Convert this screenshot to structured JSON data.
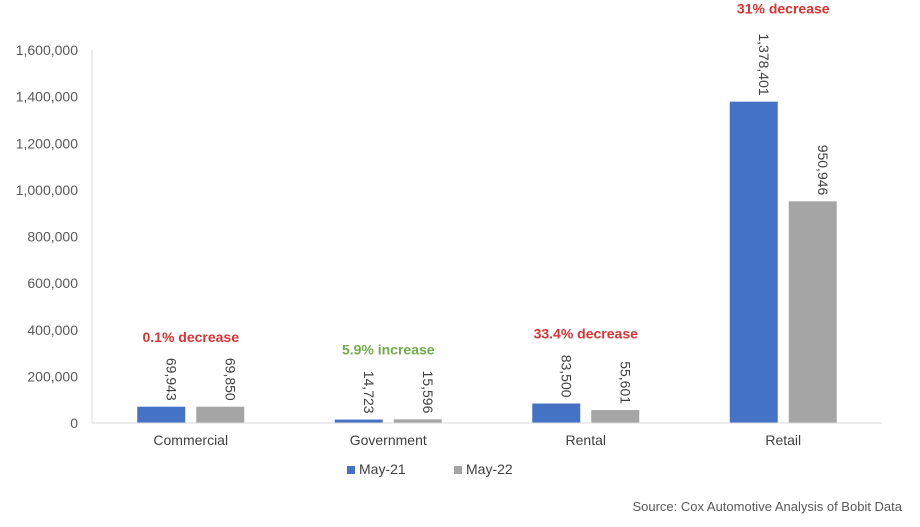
{
  "chart_data": {
    "type": "bar",
    "categories": [
      "Commercial",
      "Government",
      "Rental",
      "Retail"
    ],
    "series": [
      {
        "name": "May-21",
        "values": [
          69943,
          14723,
          83500,
          1378401
        ],
        "labels": [
          "69,943",
          "14,723",
          "83,500",
          "1,378,401"
        ]
      },
      {
        "name": "May-22",
        "values": [
          69850,
          15596,
          55601,
          950946
        ],
        "labels": [
          "69,850",
          "15,596",
          "55,601",
          "950,946"
        ]
      }
    ],
    "ylim": [
      0,
      1600000
    ],
    "yticks": [
      0,
      200000,
      400000,
      600000,
      800000,
      1000000,
      1200000,
      1400000,
      1600000
    ],
    "ytick_labels": [
      "0",
      "200,000",
      "400,000",
      "600,000",
      "800,000",
      "1,000,000",
      "1,200,000",
      "1,400,000",
      "1,600,000"
    ],
    "annotations": [
      {
        "category": "Commercial",
        "text": "0.1% decrease",
        "color": "#e03131"
      },
      {
        "category": "Government",
        "text": "5.9% increase",
        "color": "#70ad47"
      },
      {
        "category": "Rental",
        "text": "33.4% decrease",
        "color": "#e03131"
      },
      {
        "category": "Retail",
        "text": "31% decrease",
        "color": "#e03131"
      }
    ],
    "colors": {
      "May-21": "#4472c4",
      "May-22": "#a5a5a5"
    },
    "grid": false,
    "legend_position": "bottom"
  },
  "source": "Source: Cox Automotive Analysis of Bobit Data"
}
